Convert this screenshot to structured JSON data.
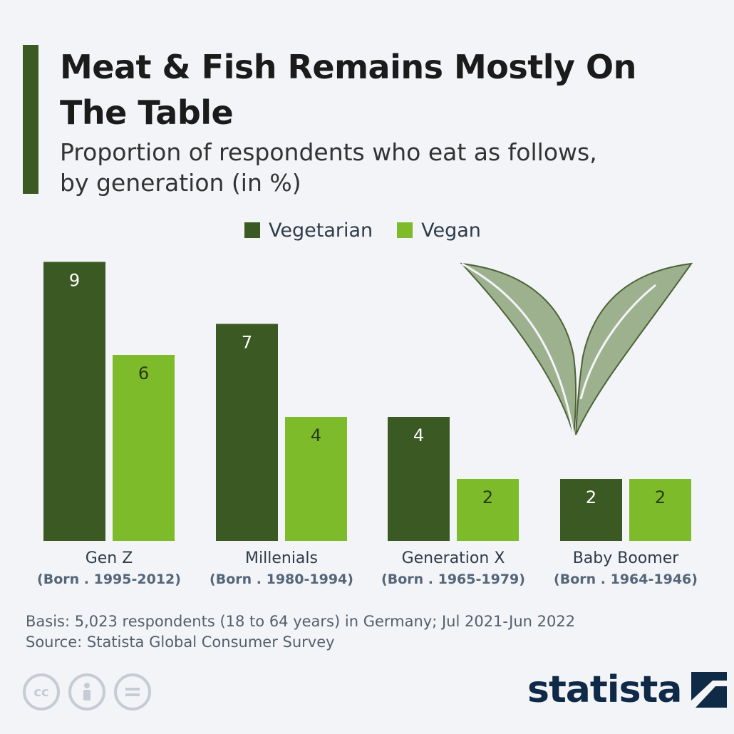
{
  "header": {
    "title": "Meat & Fish Remains Mostly On The Table",
    "subtitle": "Proportion of respondents who eat as follows, by generation (in %)"
  },
  "legend": {
    "items": [
      {
        "label": "Vegetarian",
        "color": "#3b5a23"
      },
      {
        "label": "Vegan",
        "color": "#7dbb2a"
      }
    ]
  },
  "chart_data": {
    "type": "bar",
    "categories": [
      "Gen Z",
      "Millenials",
      "Generation X",
      "Baby Boomer"
    ],
    "category_sublabels": [
      "(Born . 1995-2012)",
      "(Born . 1980-1994)",
      "(Born . 1965-1979)",
      "(Born . 1964-1946)"
    ],
    "series": [
      {
        "name": "Vegetarian",
        "values": [
          9,
          7,
          4,
          2
        ],
        "color": "#3b5a23"
      },
      {
        "name": "Vegan",
        "values": [
          6,
          4,
          2,
          2
        ],
        "color": "#7dbb2a"
      }
    ],
    "ylim": [
      0,
      9
    ],
    "grid": false,
    "data_labels": true,
    "legend_position": "top-center"
  },
  "footer": {
    "basis": "Basis: 5,023 respondents (18 to 64 years) in Germany; Jul 2021-Jun 2022",
    "source": "Source: Statista Global Consumer Survey",
    "logo_text": "statista",
    "license_icons": [
      "cc-icon",
      "attribution-icon",
      "no-derivatives-icon"
    ]
  },
  "decoration": {
    "icon": "leaf-icon"
  }
}
